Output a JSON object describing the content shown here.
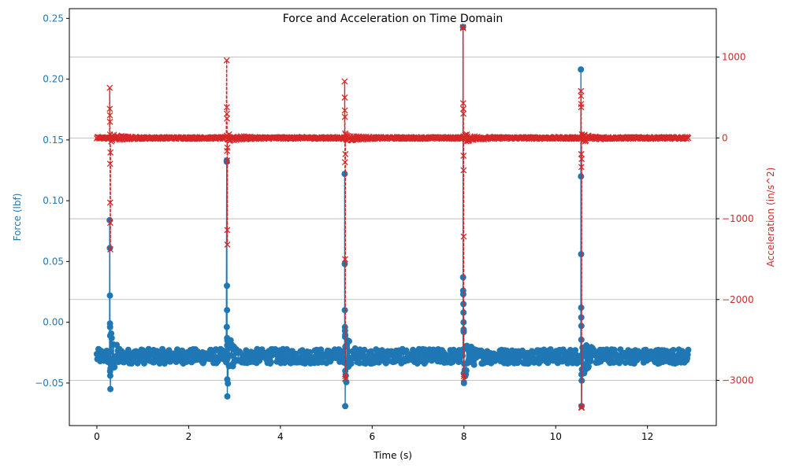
{
  "chart_data": {
    "type": "line",
    "title": "Force and Acceleration on Time Domain",
    "xlabel": "Time (s)",
    "xlim": [
      -0.6,
      13.5
    ],
    "x_ticks": [
      {
        "value": 0,
        "label": "0"
      },
      {
        "value": 2,
        "label": "2"
      },
      {
        "value": 4,
        "label": "4"
      },
      {
        "value": 6,
        "label": "6"
      },
      {
        "value": 8,
        "label": "8"
      },
      {
        "value": 10,
        "label": "10"
      },
      {
        "value": 12,
        "label": "12"
      }
    ],
    "left_axis": {
      "label": "Force (lbf)",
      "color": "#1f77b4",
      "ylim": [
        -0.085,
        0.258
      ],
      "ticks": [
        {
          "value": -0.05,
          "label": "−0.05"
        },
        {
          "value": 0.0,
          "label": "0.00"
        },
        {
          "value": 0.05,
          "label": "0.05"
        },
        {
          "value": 0.1,
          "label": "0.10"
        },
        {
          "value": 0.15,
          "label": "0.15"
        },
        {
          "value": 0.2,
          "label": "0.20"
        },
        {
          "value": 0.25,
          "label": "0.25"
        }
      ]
    },
    "right_axis": {
      "label": "Acceleration (in/s^2)",
      "color": "#d62728",
      "ylim": [
        -3560,
        1600
      ],
      "ticks": [
        {
          "value": -3000,
          "label": "−3000"
        },
        {
          "value": -2000,
          "label": "−2000"
        },
        {
          "value": -1000,
          "label": "−1000"
        },
        {
          "value": 0,
          "label": "0"
        },
        {
          "value": 1000,
          "label": "1000"
        }
      ],
      "grid": true
    },
    "series": [
      {
        "axis": "left",
        "marker": "circle",
        "color": "#1f77b4",
        "baseline": -0.028,
        "baseline_noise": 0.006,
        "spikes": [
          {
            "t": 0.28,
            "points": [
              0.084,
              0.061,
              0.022,
              -0.001,
              -0.004,
              -0.011,
              -0.044,
              -0.055,
              -0.038
            ]
          },
          {
            "t": 2.83,
            "points": [
              0.133,
              0.132,
              0.03,
              0.01,
              -0.013,
              -0.019,
              -0.047,
              -0.061,
              -0.03
            ]
          },
          {
            "t": 5.4,
            "points": [
              0.122,
              0.048,
              0.01,
              -0.004,
              -0.007,
              -0.012,
              -0.069,
              -0.04,
              -0.02
            ]
          },
          {
            "t": 7.98,
            "points": [
              0.243,
              0.037,
              0.026,
              0.023,
              0.015,
              0.008,
              0.0,
              -0.006,
              -0.008,
              -0.042,
              -0.05
            ]
          },
          {
            "t": 10.55,
            "points": [
              0.208,
              0.12,
              0.056,
              0.012,
              0.004,
              -0.003,
              -0.043,
              -0.069,
              -0.048
            ]
          }
        ]
      },
      {
        "axis": "right",
        "marker": "x",
        "color": "#d62728",
        "baseline": 0,
        "baseline_noise": 12,
        "spikes": [
          {
            "t": 0.28,
            "points": [
              620,
              360,
              280,
              200,
              -320,
              -800,
              -1050,
              -1380,
              -180
            ]
          },
          {
            "t": 2.83,
            "points": [
              960,
              380,
              300,
              240,
              -160,
              -280,
              -1140,
              -1320,
              -120
            ]
          },
          {
            "t": 5.4,
            "points": [
              700,
              500,
              340,
              260,
              -300,
              -1500,
              -2980,
              -2950,
              -200
            ]
          },
          {
            "t": 7.98,
            "points": [
              1370,
              1360,
              430,
              360,
              300,
              -220,
              -400,
              -1220,
              -2950,
              -2980
            ]
          },
          {
            "t": 10.55,
            "points": [
              580,
              520,
              420,
              380,
              -200,
              -360,
              -3330,
              -3340,
              -260
            ]
          }
        ]
      }
    ]
  }
}
